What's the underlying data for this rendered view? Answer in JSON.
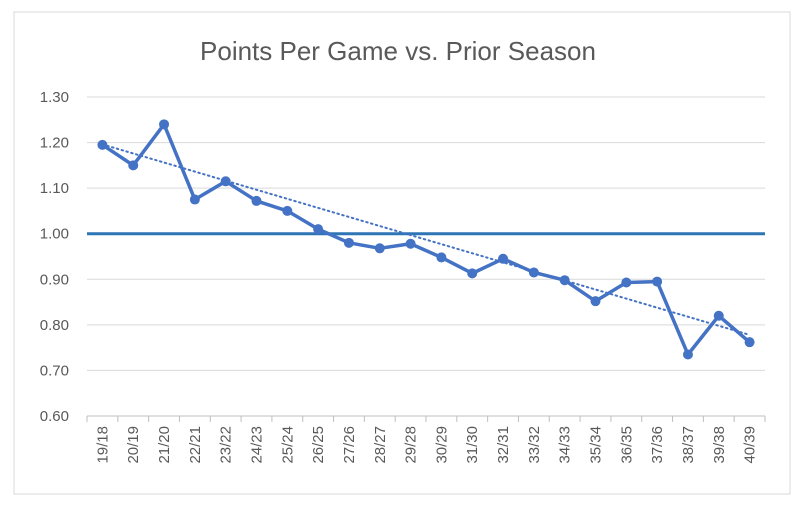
{
  "chart_data": {
    "type": "line",
    "title": "Points Per Game vs. Prior Season",
    "xlabel": "",
    "ylabel": "",
    "categories": [
      "19/18",
      "20/19",
      "21/20",
      "22/21",
      "23/22",
      "24/23",
      "25/24",
      "26/25",
      "27/26",
      "28/27",
      "29/28",
      "30/29",
      "31/30",
      "32/31",
      "33/32",
      "34/33",
      "35/34",
      "36/35",
      "37/36",
      "38/37",
      "39/38",
      "40/39"
    ],
    "series": [
      {
        "name": "Points Per Game vs. Prior Season",
        "values": [
          1.195,
          1.15,
          1.24,
          1.075,
          1.115,
          1.072,
          1.05,
          1.01,
          0.98,
          0.968,
          0.978,
          0.948,
          0.913,
          0.945,
          0.915,
          0.898,
          0.852,
          0.893,
          0.895,
          0.735,
          0.82,
          0.762
        ]
      }
    ],
    "reference_line": 1.0,
    "trendline": {
      "type": "linear",
      "start": 1.196,
      "end": 0.778
    },
    "ylim": [
      0.6,
      1.3
    ],
    "yticks": [
      "0.60",
      "0.70",
      "0.80",
      "0.90",
      "1.00",
      "1.10",
      "1.20",
      "1.30"
    ],
    "grid": true,
    "legend": "none",
    "colors": {
      "line": "#4472c4",
      "reference": "#2e75b6",
      "grid": "#d9d9d9",
      "axis": "#bfbfbf",
      "text": "#595959"
    }
  }
}
